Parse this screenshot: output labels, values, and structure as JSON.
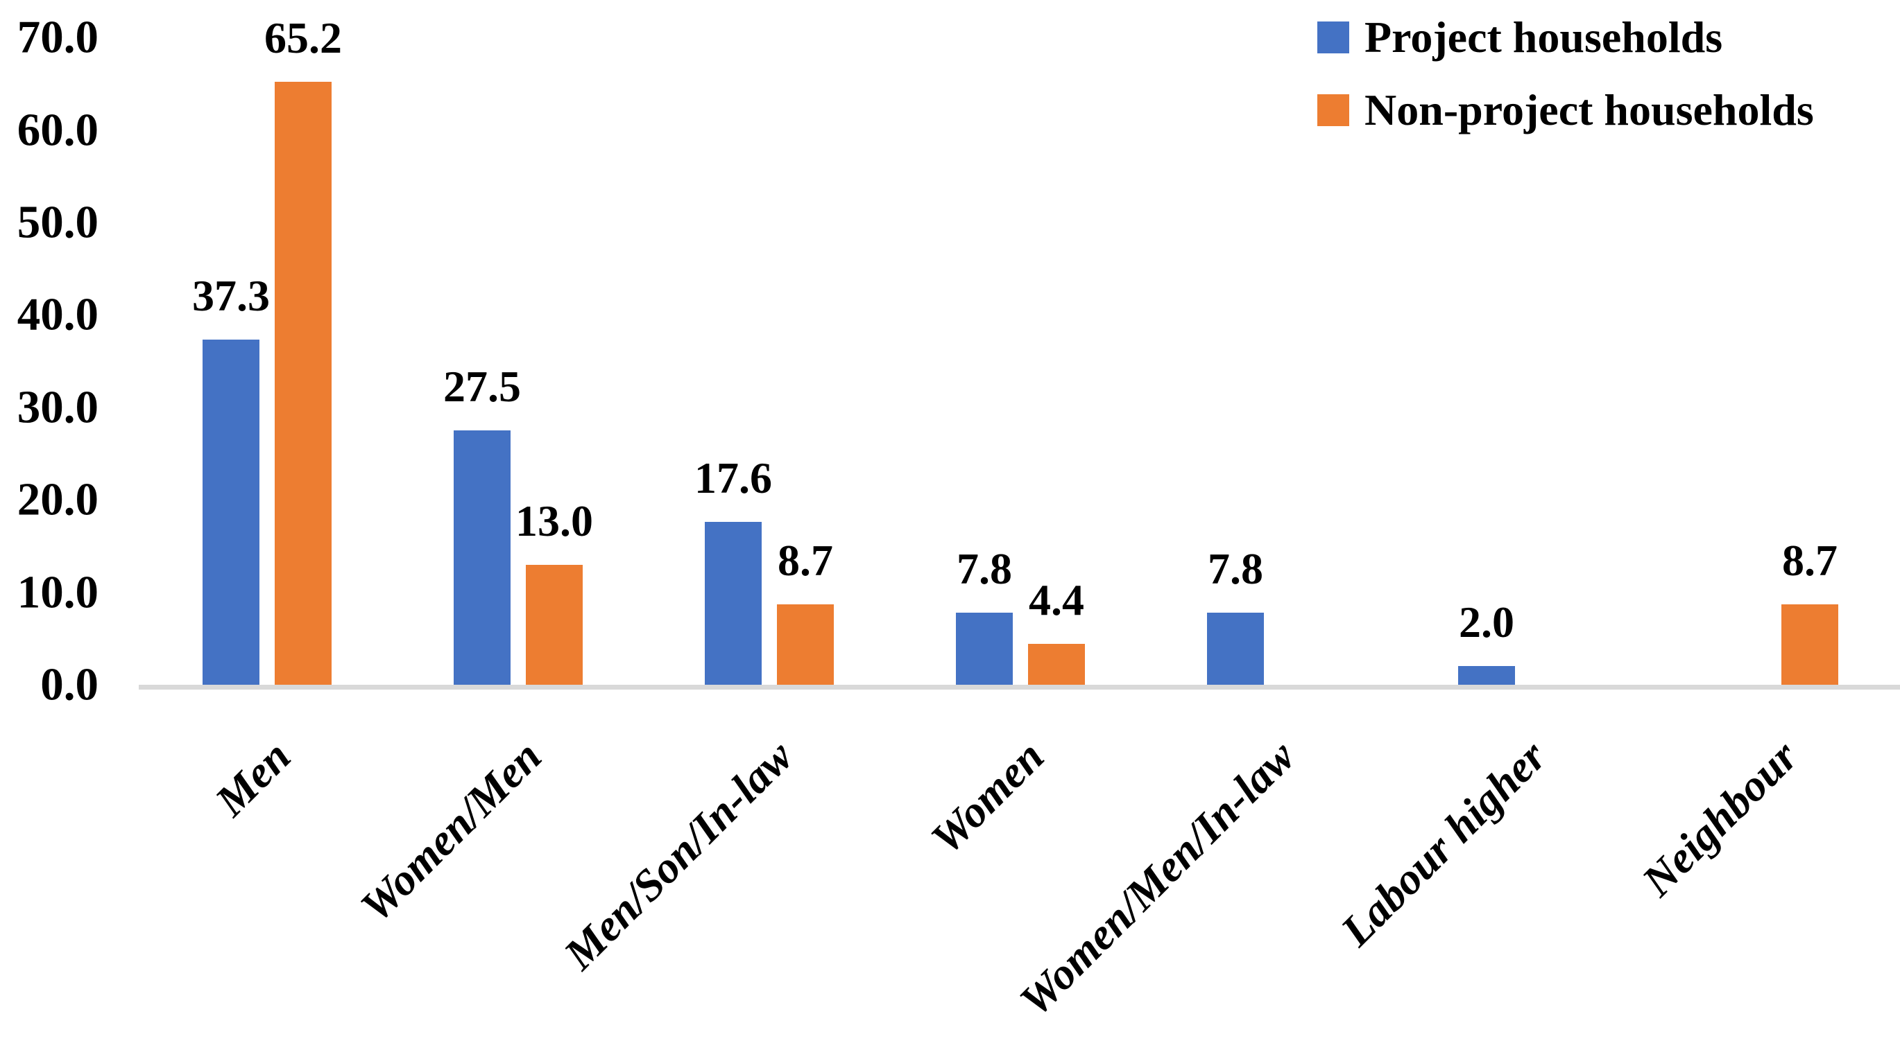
{
  "chart_data": {
    "type": "bar",
    "title": "",
    "xlabel": "",
    "ylabel": "",
    "categories": [
      "Men",
      "Women/Men",
      "Men/Son/In-law",
      "Women",
      "Women/Men/In-law",
      "Labour higher",
      "Neighbour"
    ],
    "series": [
      {
        "name": "Project households",
        "color": "#4472C4",
        "values": [
          37.3,
          27.5,
          17.6,
          7.8,
          7.8,
          2.0,
          null
        ]
      },
      {
        "name": "Non-project households",
        "color": "#ED7D31",
        "values": [
          65.2,
          13.0,
          8.7,
          4.4,
          null,
          null,
          8.7
        ]
      }
    ],
    "data_labels": [
      [
        "37.3",
        "27.5",
        "17.6",
        "7.8",
        "7.8",
        "2.0",
        null
      ],
      [
        "65.2",
        "13.0",
        "8.7",
        "4.4",
        null,
        null,
        "8.7"
      ]
    ],
    "ylim": [
      0,
      70
    ],
    "ytick_step": 10,
    "ytick_labels": [
      "0.0",
      "10.0",
      "20.0",
      "30.0",
      "40.0",
      "50.0",
      "60.0",
      "70.0"
    ],
    "grid": false,
    "legend_position": "top-right",
    "axis_line_color": "#D9D9D9",
    "text_color": "#000000",
    "category_label_rotation_deg": -45
  }
}
